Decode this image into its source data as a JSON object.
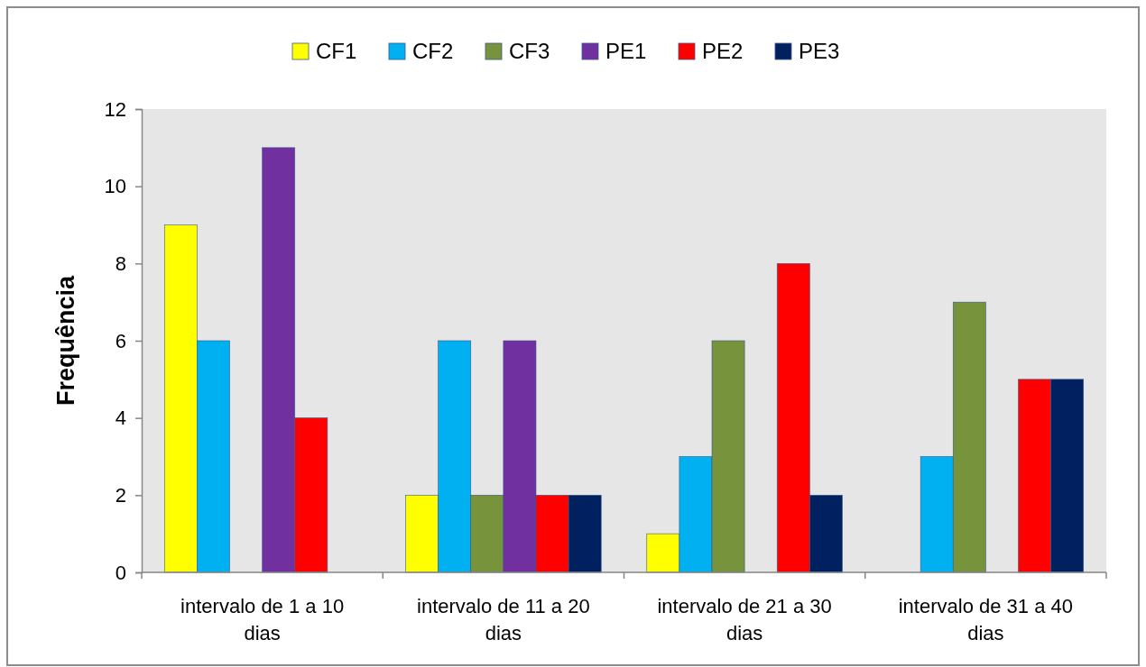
{
  "chart_data": {
    "type": "bar",
    "ylabel": "Frequência",
    "categories": [
      "intervalo de 1 a 10 dias",
      "intervalo de 11 a 20 dias",
      "intervalo de 21 a 30 dias",
      "intervalo de 31 a 40 dias"
    ],
    "series": [
      {
        "name": "CF1",
        "color": "#ffff00",
        "values": [
          9,
          2,
          1,
          null
        ]
      },
      {
        "name": "CF2",
        "color": "#00b0f0",
        "values": [
          6,
          6,
          3,
          3
        ]
      },
      {
        "name": "CF3",
        "color": "#77933c",
        "values": [
          null,
          2,
          6,
          7
        ]
      },
      {
        "name": "PE1",
        "color": "#7030a0",
        "values": [
          11,
          6,
          null,
          null
        ]
      },
      {
        "name": "PE2",
        "color": "#ff0000",
        "values": [
          4,
          2,
          8,
          5
        ]
      },
      {
        "name": "PE3",
        "color": "#002060",
        "values": [
          null,
          2,
          2,
          5
        ]
      }
    ],
    "ylim": [
      0,
      12
    ],
    "yticks": [
      0,
      2,
      4,
      6,
      8,
      10,
      12
    ],
    "legend": "top"
  }
}
